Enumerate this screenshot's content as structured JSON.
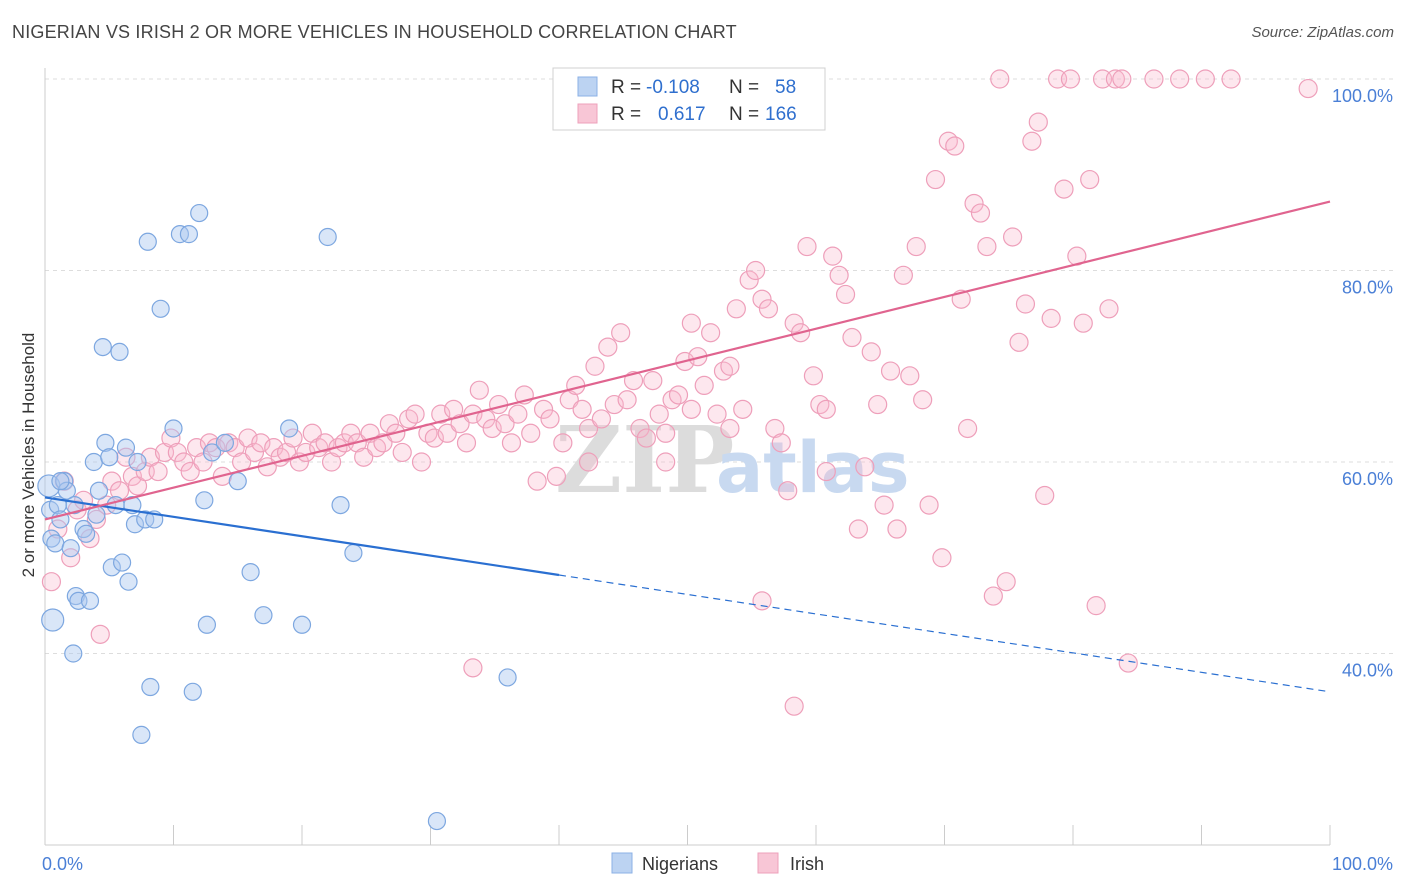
{
  "title": "NIGERIAN VS IRISH 2 OR MORE VEHICLES IN HOUSEHOLD CORRELATION CHART",
  "source": "Source: ZipAtlas.com",
  "watermark": {
    "zip": "ZIP",
    "atlas": "atlas"
  },
  "colors": {
    "nigerians": "#5b8fd9",
    "irish": "#e87aa0",
    "nigerians_line": "#2a6fd1",
    "irish_line": "#e0648f"
  },
  "legend": {
    "rows": [
      {
        "r_label": "R =",
        "r_value": "-0.108",
        "n_label": "N =",
        "n_value": "58"
      },
      {
        "r_label": "R =",
        "r_value": "0.617",
        "n_label": "N =",
        "n_value": "166"
      }
    ]
  },
  "chart_data": {
    "type": "scatter",
    "xlabel": "",
    "ylabel": "2 or more Vehicles in Household",
    "xlim": [
      0,
      100
    ],
    "ylim": [
      20,
      100
    ],
    "x_tick_labels": [
      "0.0%",
      "100.0%"
    ],
    "y_tick_labels": [
      "40.0%",
      "60.0%",
      "80.0%",
      "100.0%"
    ],
    "y_ticks": [
      40,
      60,
      80,
      100
    ],
    "grid": true,
    "legend_position": "top-center",
    "series": [
      {
        "name": "Nigerians",
        "trend": {
          "x0": 0,
          "y0": 56.3,
          "x1": 40,
          "y1": 48.2,
          "dashed_to_x": 100,
          "dashed_to_y": 36.0
        },
        "points": [
          [
            0.3,
            57.5
          ],
          [
            0.4,
            55.0
          ],
          [
            0.5,
            52.0
          ],
          [
            0.6,
            43.5
          ],
          [
            0.8,
            51.5
          ],
          [
            1.0,
            55.5
          ],
          [
            1.2,
            54.0
          ],
          [
            1.5,
            58.0
          ],
          [
            1.7,
            57.0
          ],
          [
            2.0,
            51.0
          ],
          [
            2.2,
            40.0
          ],
          [
            2.4,
            46.0
          ],
          [
            2.6,
            45.5
          ],
          [
            3.0,
            53.0
          ],
          [
            3.2,
            52.5
          ],
          [
            3.5,
            45.5
          ],
          [
            3.8,
            60.0
          ],
          [
            4.0,
            54.5
          ],
          [
            4.2,
            57.0
          ],
          [
            4.5,
            72.0
          ],
          [
            4.7,
            62.0
          ],
          [
            5.0,
            60.5
          ],
          [
            5.2,
            49.0
          ],
          [
            5.5,
            55.5
          ],
          [
            5.8,
            71.5
          ],
          [
            6.0,
            49.5
          ],
          [
            6.3,
            61.5
          ],
          [
            6.5,
            47.5
          ],
          [
            6.8,
            55.5
          ],
          [
            7.0,
            53.5
          ],
          [
            7.2,
            60.0
          ],
          [
            7.5,
            31.5
          ],
          [
            7.8,
            54.0
          ],
          [
            8.2,
            36.5
          ],
          [
            8.5,
            54.0
          ],
          [
            8.0,
            83.0
          ],
          [
            9.0,
            76.0
          ],
          [
            10.0,
            63.5
          ],
          [
            10.5,
            83.8
          ],
          [
            11.2,
            83.8
          ],
          [
            11.5,
            36.0
          ],
          [
            12.0,
            86.0
          ],
          [
            12.4,
            56.0
          ],
          [
            12.6,
            43.0
          ],
          [
            13.0,
            61.0
          ],
          [
            14.0,
            62.0
          ],
          [
            15.0,
            58.0
          ],
          [
            16.0,
            48.5
          ],
          [
            17.0,
            44.0
          ],
          [
            19.0,
            63.5
          ],
          [
            20.0,
            43.0
          ],
          [
            22.0,
            83.5
          ],
          [
            23.0,
            55.5
          ],
          [
            24.0,
            50.5
          ],
          [
            1.2,
            58.0
          ],
          [
            2.3,
            55.5
          ],
          [
            30.5,
            22.5
          ],
          [
            36.0,
            37.5
          ]
        ]
      },
      {
        "name": "Irish",
        "trend": {
          "x0": 0,
          "y0": 54.0,
          "x1": 100,
          "y1": 87.2
        },
        "points": [
          [
            0.5,
            47.5
          ],
          [
            1.0,
            53.0
          ],
          [
            1.5,
            58.0
          ],
          [
            2.0,
            50.0
          ],
          [
            2.5,
            55.0
          ],
          [
            3.0,
            56.0
          ],
          [
            3.5,
            52.0
          ],
          [
            4.0,
            54.0
          ],
          [
            4.3,
            42.0
          ],
          [
            4.8,
            55.5
          ],
          [
            5.2,
            58.0
          ],
          [
            5.8,
            57.0
          ],
          [
            6.3,
            60.5
          ],
          [
            6.8,
            58.5
          ],
          [
            7.2,
            57.5
          ],
          [
            7.8,
            59.0
          ],
          [
            8.2,
            60.5
          ],
          [
            8.8,
            59.0
          ],
          [
            9.3,
            61.0
          ],
          [
            9.8,
            62.5
          ],
          [
            10.3,
            61.0
          ],
          [
            10.8,
            60.0
          ],
          [
            11.3,
            59.0
          ],
          [
            11.8,
            61.5
          ],
          [
            12.3,
            60.0
          ],
          [
            12.8,
            62.0
          ],
          [
            13.3,
            61.5
          ],
          [
            13.8,
            58.5
          ],
          [
            14.3,
            62.0
          ],
          [
            14.8,
            61.5
          ],
          [
            15.3,
            60.0
          ],
          [
            15.8,
            62.5
          ],
          [
            16.3,
            61.0
          ],
          [
            16.8,
            62.0
          ],
          [
            17.3,
            59.5
          ],
          [
            17.8,
            61.5
          ],
          [
            18.3,
            60.5
          ],
          [
            18.8,
            61.0
          ],
          [
            19.3,
            62.5
          ],
          [
            19.8,
            60.0
          ],
          [
            20.3,
            61.0
          ],
          [
            20.8,
            63.0
          ],
          [
            21.3,
            61.5
          ],
          [
            21.8,
            62.0
          ],
          [
            22.3,
            60.0
          ],
          [
            22.8,
            61.5
          ],
          [
            23.3,
            62.0
          ],
          [
            23.8,
            63.0
          ],
          [
            24.3,
            62.0
          ],
          [
            24.8,
            60.5
          ],
          [
            25.3,
            63.0
          ],
          [
            25.8,
            61.5
          ],
          [
            26.3,
            62.0
          ],
          [
            26.8,
            64.0
          ],
          [
            27.3,
            63.0
          ],
          [
            27.8,
            61.0
          ],
          [
            28.3,
            64.5
          ],
          [
            28.8,
            65.0
          ],
          [
            29.3,
            60.0
          ],
          [
            29.8,
            63.0
          ],
          [
            30.3,
            62.5
          ],
          [
            30.8,
            65.0
          ],
          [
            31.3,
            63.0
          ],
          [
            31.8,
            65.5
          ],
          [
            32.3,
            64.0
          ],
          [
            32.8,
            62.0
          ],
          [
            33.3,
            65.0
          ],
          [
            33.8,
            67.5
          ],
          [
            34.3,
            64.5
          ],
          [
            34.8,
            63.5
          ],
          [
            35.3,
            66.0
          ],
          [
            35.8,
            64.0
          ],
          [
            36.3,
            62.0
          ],
          [
            36.8,
            65.0
          ],
          [
            37.3,
            67.0
          ],
          [
            37.8,
            63.0
          ],
          [
            38.3,
            58.0
          ],
          [
            38.8,
            65.5
          ],
          [
            39.3,
            64.5
          ],
          [
            39.8,
            58.5
          ],
          [
            40.3,
            62.0
          ],
          [
            40.8,
            66.5
          ],
          [
            41.3,
            68.0
          ],
          [
            41.8,
            65.5
          ],
          [
            42.3,
            63.5
          ],
          [
            42.8,
            70.0
          ],
          [
            43.3,
            64.5
          ],
          [
            43.8,
            72.0
          ],
          [
            44.3,
            66.0
          ],
          [
            44.8,
            73.5
          ],
          [
            45.3,
            66.5
          ],
          [
            45.8,
            68.5
          ],
          [
            46.3,
            63.5
          ],
          [
            46.8,
            62.5
          ],
          [
            47.3,
            68.5
          ],
          [
            47.8,
            65.0
          ],
          [
            48.3,
            60.0
          ],
          [
            48.8,
            66.5
          ],
          [
            49.3,
            67.0
          ],
          [
            49.8,
            70.5
          ],
          [
            50.3,
            74.5
          ],
          [
            50.8,
            71.0
          ],
          [
            51.3,
            68.0
          ],
          [
            51.8,
            73.5
          ],
          [
            52.3,
            65.0
          ],
          [
            52.8,
            69.5
          ],
          [
            53.3,
            70.0
          ],
          [
            53.8,
            76.0
          ],
          [
            54.3,
            65.5
          ],
          [
            54.8,
            79.0
          ],
          [
            55.3,
            80.0
          ],
          [
            55.8,
            77.0
          ],
          [
            56.3,
            76.0
          ],
          [
            56.8,
            63.5
          ],
          [
            57.3,
            62.0
          ],
          [
            57.8,
            57.0
          ],
          [
            58.3,
            74.5
          ],
          [
            58.8,
            73.5
          ],
          [
            59.3,
            82.5
          ],
          [
            59.8,
            69.0
          ],
          [
            60.3,
            66.0
          ],
          [
            60.8,
            65.5
          ],
          [
            61.3,
            81.5
          ],
          [
            61.8,
            79.5
          ],
          [
            62.3,
            77.5
          ],
          [
            62.8,
            73.0
          ],
          [
            63.3,
            53.0
          ],
          [
            63.8,
            59.5
          ],
          [
            64.3,
            71.5
          ],
          [
            64.8,
            66.0
          ],
          [
            65.3,
            55.5
          ],
          [
            65.8,
            69.5
          ],
          [
            66.3,
            53.0
          ],
          [
            66.8,
            79.5
          ],
          [
            67.3,
            69.0
          ],
          [
            67.8,
            82.5
          ],
          [
            68.3,
            66.5
          ],
          [
            68.8,
            55.5
          ],
          [
            69.3,
            89.5
          ],
          [
            69.8,
            50.0
          ],
          [
            70.3,
            93.5
          ],
          [
            70.8,
            93.0
          ],
          [
            71.3,
            77.0
          ],
          [
            71.8,
            63.5
          ],
          [
            72.3,
            87.0
          ],
          [
            72.8,
            86.0
          ],
          [
            73.3,
            82.5
          ],
          [
            73.8,
            46.0
          ],
          [
            74.3,
            100.0
          ],
          [
            74.8,
            47.5
          ],
          [
            75.3,
            83.5
          ],
          [
            75.8,
            72.5
          ],
          [
            76.3,
            76.5
          ],
          [
            76.8,
            93.5
          ],
          [
            77.3,
            95.5
          ],
          [
            77.8,
            56.5
          ],
          [
            78.3,
            75.0
          ],
          [
            78.8,
            100.0
          ],
          [
            79.3,
            88.5
          ],
          [
            79.8,
            100.0
          ],
          [
            80.3,
            81.5
          ],
          [
            80.8,
            74.5
          ],
          [
            81.3,
            89.5
          ],
          [
            81.8,
            45.0
          ],
          [
            82.3,
            100.0
          ],
          [
            82.8,
            76.0
          ],
          [
            83.3,
            100.0
          ],
          [
            83.8,
            100.0
          ],
          [
            84.3,
            39.0
          ],
          [
            86.3,
            100.0
          ],
          [
            88.3,
            100.0
          ],
          [
            90.3,
            100.0
          ],
          [
            92.3,
            100.0
          ],
          [
            98.3,
            99.0
          ],
          [
            58.8,
            100.0
          ],
          [
            56.8,
            100.0
          ],
          [
            60.8,
            59.0
          ],
          [
            58.3,
            34.5
          ],
          [
            55.8,
            45.5
          ],
          [
            42.3,
            60.0
          ],
          [
            33.3,
            38.5
          ],
          [
            53.3,
            63.5
          ],
          [
            50.3,
            65.5
          ],
          [
            48.3,
            63.0
          ]
        ]
      }
    ]
  },
  "bottom_legend": [
    {
      "label": "Nigerians"
    },
    {
      "label": "Irish"
    }
  ]
}
